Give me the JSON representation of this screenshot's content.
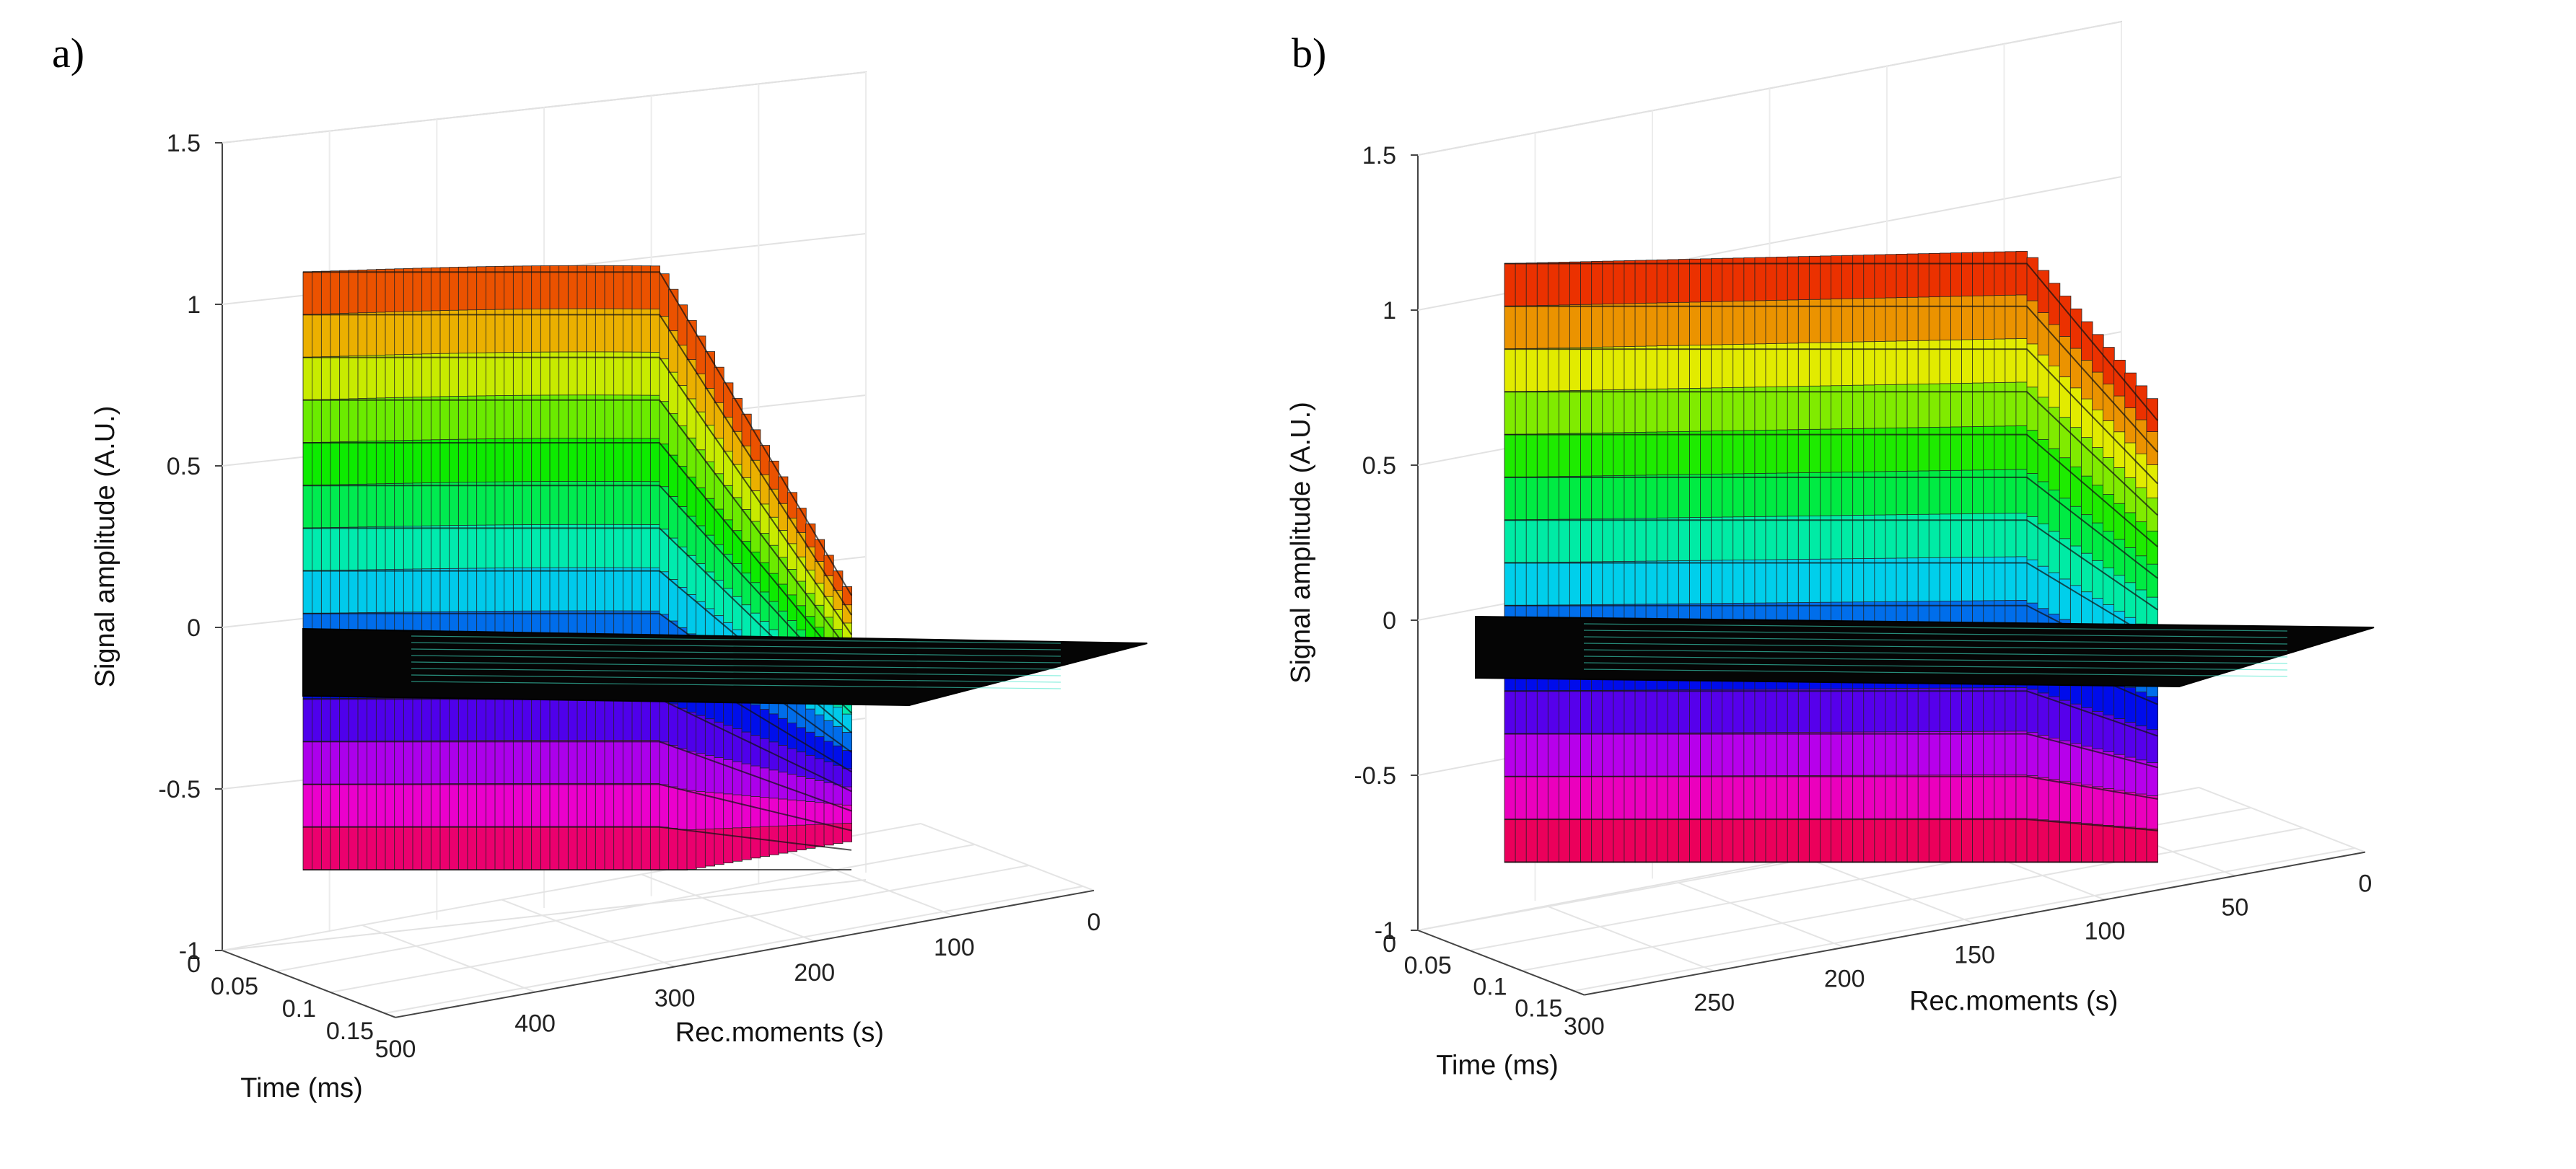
{
  "figure": {
    "panels": [
      {
        "label": "a)"
      },
      {
        "label": "b)"
      }
    ]
  },
  "chart_data": [
    {
      "type": "surface",
      "panel": "a)",
      "title": "",
      "zlabel": "Signal amplitude (A.U.)",
      "xlabel": "Time (ms)",
      "ylabel": "Rec.moments (s)",
      "z_ticks": [
        "1.5",
        "1",
        "0.5",
        "0",
        "-0.5",
        "-1"
      ],
      "x_ticks": [
        "0",
        "0.05",
        "0.1",
        "0.15"
      ],
      "y_ticks": [
        "500",
        "400",
        "300",
        "200",
        "100",
        "0"
      ],
      "zlim": [
        -1,
        1.5
      ],
      "xlim": [
        0,
        0.15
      ],
      "ylim": [
        0,
        500
      ],
      "surface_edge": {
        "max_amplitude": 1.1,
        "min_amplitude": -0.75
      },
      "grid": true,
      "colormap": "hsv"
    },
    {
      "type": "surface",
      "panel": "b)",
      "title": "",
      "zlabel": "Signal amplitude (A.U.)",
      "xlabel": "Time (ms)",
      "ylabel": "Rec.moments (s)",
      "z_ticks": [
        "1.5",
        "1",
        "0.5",
        "0",
        "-0.5",
        "-1"
      ],
      "x_ticks": [
        "0",
        "0.05",
        "0.1",
        "0.15"
      ],
      "y_ticks": [
        "300",
        "250",
        "200",
        "150",
        "100",
        "50",
        "0"
      ],
      "zlim": [
        -1,
        1.5
      ],
      "xlim": [
        0,
        0.15
      ],
      "ylim": [
        0,
        300
      ],
      "surface_edge": {
        "max_amplitude": 1.15,
        "min_amplitude": -0.78
      },
      "grid": true,
      "colormap": "hsv"
    }
  ]
}
